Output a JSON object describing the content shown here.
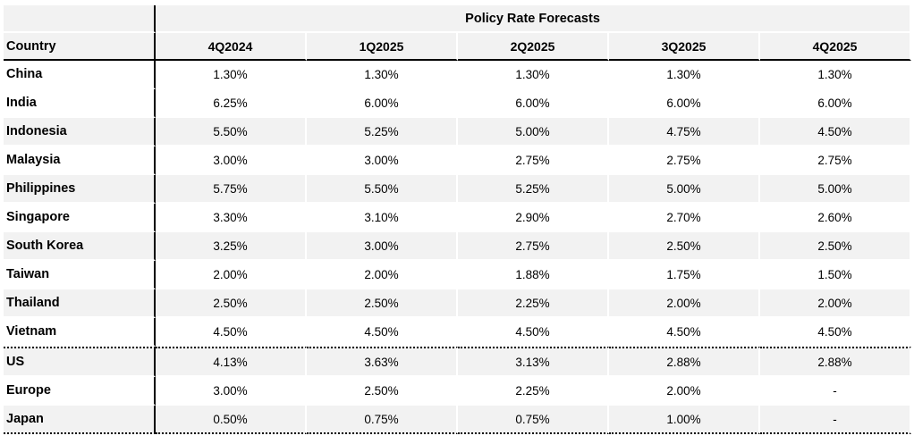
{
  "table": {
    "title": "Policy Rate Forecasts",
    "country_header": "Country",
    "quarters": [
      "4Q2024",
      "1Q2025",
      "2Q2025",
      "3Q2025",
      "4Q2025"
    ],
    "rows": [
      {
        "country": "China",
        "values": [
          "1.30%",
          "1.30%",
          "1.30%",
          "1.30%",
          "1.30%"
        ]
      },
      {
        "country": "India",
        "values": [
          "6.25%",
          "6.00%",
          "6.00%",
          "6.00%",
          "6.00%"
        ]
      },
      {
        "country": "Indonesia",
        "values": [
          "5.50%",
          "5.25%",
          "5.00%",
          "4.75%",
          "4.50%"
        ]
      },
      {
        "country": "Malaysia",
        "values": [
          "3.00%",
          "3.00%",
          "2.75%",
          "2.75%",
          "2.75%"
        ]
      },
      {
        "country": "Philippines",
        "values": [
          "5.75%",
          "5.50%",
          "5.25%",
          "5.00%",
          "5.00%"
        ]
      },
      {
        "country": "Singapore",
        "values": [
          "3.30%",
          "3.10%",
          "2.90%",
          "2.70%",
          "2.60%"
        ]
      },
      {
        "country": "South Korea",
        "values": [
          "3.25%",
          "3.00%",
          "2.75%",
          "2.50%",
          "2.50%"
        ]
      },
      {
        "country": "Taiwan",
        "values": [
          "2.00%",
          "2.00%",
          "1.88%",
          "1.75%",
          "1.50%"
        ]
      },
      {
        "country": "Thailand",
        "values": [
          "2.50%",
          "2.50%",
          "2.25%",
          "2.00%",
          "2.00%"
        ]
      },
      {
        "country": "Vietnam",
        "values": [
          "4.50%",
          "4.50%",
          "4.50%",
          "4.50%",
          "4.50%"
        ]
      },
      {
        "country": "US",
        "values": [
          "4.13%",
          "3.63%",
          "3.13%",
          "2.88%",
          "2.88%"
        ]
      },
      {
        "country": "Europe",
        "values": [
          "3.00%",
          "2.50%",
          "2.25%",
          "2.00%",
          "-"
        ]
      },
      {
        "country": "Japan",
        "values": [
          "0.50%",
          "0.75%",
          "0.75%",
          "1.00%",
          "-"
        ]
      }
    ]
  }
}
